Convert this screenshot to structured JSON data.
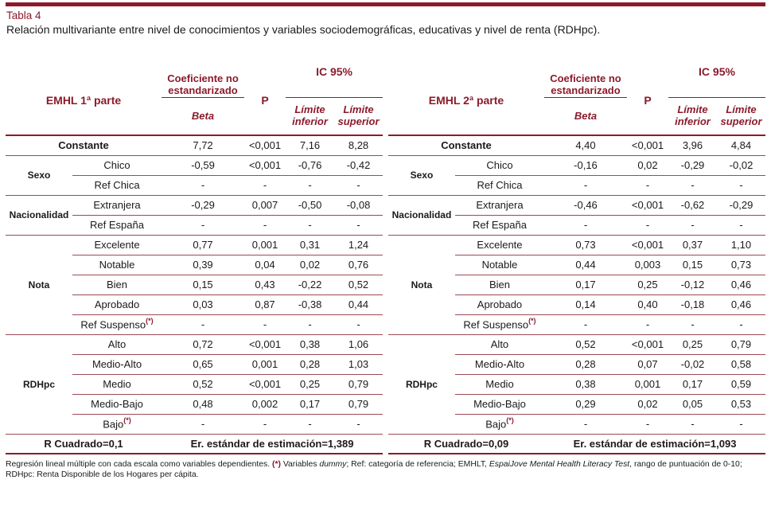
{
  "colors": {
    "accent": "#8b1b2b",
    "rule_thin": "#9c4a54"
  },
  "page": {
    "title": "Tabla 4",
    "subtitle": "Relación multivariante entre nivel de conocimientos y variables sociodemográficas, educativas y nivel de renta (RDHpc)."
  },
  "header_labels": {
    "coef": "Coeficiente no estandarizado",
    "beta": "Beta",
    "p": "P",
    "ic95": "IC 95%",
    "limit_lower": "Límite inferior",
    "limit_upper": "Límite superior"
  },
  "tables": [
    {
      "name": "EMHL 1ª parte",
      "constant": {
        "label": "Constante",
        "beta": "7,72",
        "p": "<0,001",
        "lo": "7,16",
        "hi": "8,28"
      },
      "groups": [
        {
          "label": "Sexo",
          "rows": [
            {
              "cat": "Chico",
              "beta": "-0,59",
              "p": "<0,001",
              "lo": "-0,76",
              "hi": "-0,42"
            },
            {
              "cat": "Ref Chica",
              "beta": "-",
              "p": "-",
              "lo": "-",
              "hi": "-"
            }
          ]
        },
        {
          "label": "Nacionalidad",
          "rows": [
            {
              "cat": "Extranjera",
              "beta": "-0,29",
              "p": "0,007",
              "lo": "-0,50",
              "hi": "-0,08"
            },
            {
              "cat": "Ref España",
              "beta": "-",
              "p": "-",
              "lo": "-",
              "hi": "-"
            }
          ]
        },
        {
          "label": "Nota",
          "rows": [
            {
              "cat": "Excelente",
              "beta": "0,77",
              "p": "0,001",
              "lo": "0,31",
              "hi": "1,24"
            },
            {
              "cat": "Notable",
              "beta": "0,39",
              "p": "0,04",
              "lo": "0,02",
              "hi": "0,76"
            },
            {
              "cat": "Bien",
              "beta": "0,15",
              "p": "0,43",
              "lo": "-0,22",
              "hi": "0,52"
            },
            {
              "cat": "Aprobado",
              "beta": "0,03",
              "p": "0,87",
              "lo": "-0,38",
              "hi": "0,44"
            },
            {
              "cat": "Ref Suspenso",
              "mark": "(*)",
              "beta": "-",
              "p": "-",
              "lo": "-",
              "hi": "-"
            }
          ]
        },
        {
          "label": "RDHpc",
          "rows": [
            {
              "cat": "Alto",
              "beta": "0,72",
              "p": "<0,001",
              "lo": "0,38",
              "hi": "1,06"
            },
            {
              "cat": "Medio-Alto",
              "beta": "0,65",
              "p": "0,001",
              "lo": "0,28",
              "hi": "1,03"
            },
            {
              "cat": "Medio",
              "beta": "0,52",
              "p": "<0,001",
              "lo": "0,25",
              "hi": "0,79"
            },
            {
              "cat": "Medio-Bajo",
              "beta": "0,48",
              "p": "0,002",
              "lo": "0,17",
              "hi": "0,79"
            },
            {
              "cat": "Bajo",
              "mark": "(*)",
              "beta": "-",
              "p": "-",
              "lo": "-",
              "hi": "-"
            }
          ]
        }
      ],
      "summary": {
        "r2": "R Cuadrado=0,1",
        "se": "Er. estándar de estimación=1,389"
      }
    },
    {
      "name": "EMHL 2ª parte",
      "constant": {
        "label": "Constante",
        "beta": "4,40",
        "p": "<0,001",
        "lo": "3,96",
        "hi": "4,84"
      },
      "groups": [
        {
          "label": "Sexo",
          "rows": [
            {
              "cat": "Chico",
              "beta": "-0,16",
              "p": "0,02",
              "lo": "-0,29",
              "hi": "-0,02"
            },
            {
              "cat": "Ref Chica",
              "beta": "-",
              "p": "-",
              "lo": "-",
              "hi": "-"
            }
          ]
        },
        {
          "label": "Nacionalidad",
          "rows": [
            {
              "cat": "Extranjera",
              "beta": "-0,46",
              "p": "<0,001",
              "lo": "-0,62",
              "hi": "-0,29"
            },
            {
              "cat": "Ref España",
              "beta": "-",
              "p": "-",
              "lo": "-",
              "hi": "-"
            }
          ]
        },
        {
          "label": "Nota",
          "rows": [
            {
              "cat": "Excelente",
              "beta": "0,73",
              "p": "<0,001",
              "lo": "0,37",
              "hi": "1,10"
            },
            {
              "cat": "Notable",
              "beta": "0,44",
              "p": "0,003",
              "lo": "0,15",
              "hi": "0,73"
            },
            {
              "cat": "Bien",
              "beta": "0,17",
              "p": "0,25",
              "lo": "-0,12",
              "hi": "0,46"
            },
            {
              "cat": "Aprobado",
              "beta": "0,14",
              "p": "0,40",
              "lo": "-0,18",
              "hi": "0,46"
            },
            {
              "cat": "Ref Suspenso",
              "mark": "(*)",
              "beta": "-",
              "p": "-",
              "lo": "-",
              "hi": "-"
            }
          ]
        },
        {
          "label": "RDHpc",
          "rows": [
            {
              "cat": "Alto",
              "beta": "0,52",
              "p": "<0,001",
              "lo": "0,25",
              "hi": "0,79"
            },
            {
              "cat": "Medio-Alto",
              "beta": "0,28",
              "p": "0,07",
              "lo": "-0,02",
              "hi": "0,58"
            },
            {
              "cat": "Medio",
              "beta": "0,38",
              "p": "0,001",
              "lo": "0,17",
              "hi": "0,59"
            },
            {
              "cat": "Medio-Bajo",
              "beta": "0,29",
              "p": "0,02",
              "lo": "0,05",
              "hi": "0,53"
            },
            {
              "cat": "Bajo",
              "mark": "(*)",
              "beta": "-",
              "p": "-",
              "lo": "-",
              "hi": "-"
            }
          ]
        }
      ],
      "summary": {
        "r2": "R Cuadrado=0,09",
        "se": "Er. estándar de estimación=1,093"
      }
    }
  ],
  "footnote": {
    "lines": [
      [
        {
          "text": "Regresión lineal múltiple con cada escala como variables dependientes. ",
          "style": "normal"
        },
        {
          "text": "(*)",
          "style": "accent-bold"
        },
        {
          "text": " Variables ",
          "style": "normal"
        },
        {
          "text": "dummy",
          "style": "italic"
        },
        {
          "text": "; Ref: categoría de referencia; EMHLT, ",
          "style": "normal"
        },
        {
          "text": "EspaiJove Mental Health Literacy Test",
          "style": "italic"
        },
        {
          "text": ", rango de puntuación de 0-10;",
          "style": "normal"
        }
      ],
      [
        {
          "text": "RDHpc: Renta Disponible de los Hogares per cápita.",
          "style": "normal"
        }
      ]
    ]
  }
}
